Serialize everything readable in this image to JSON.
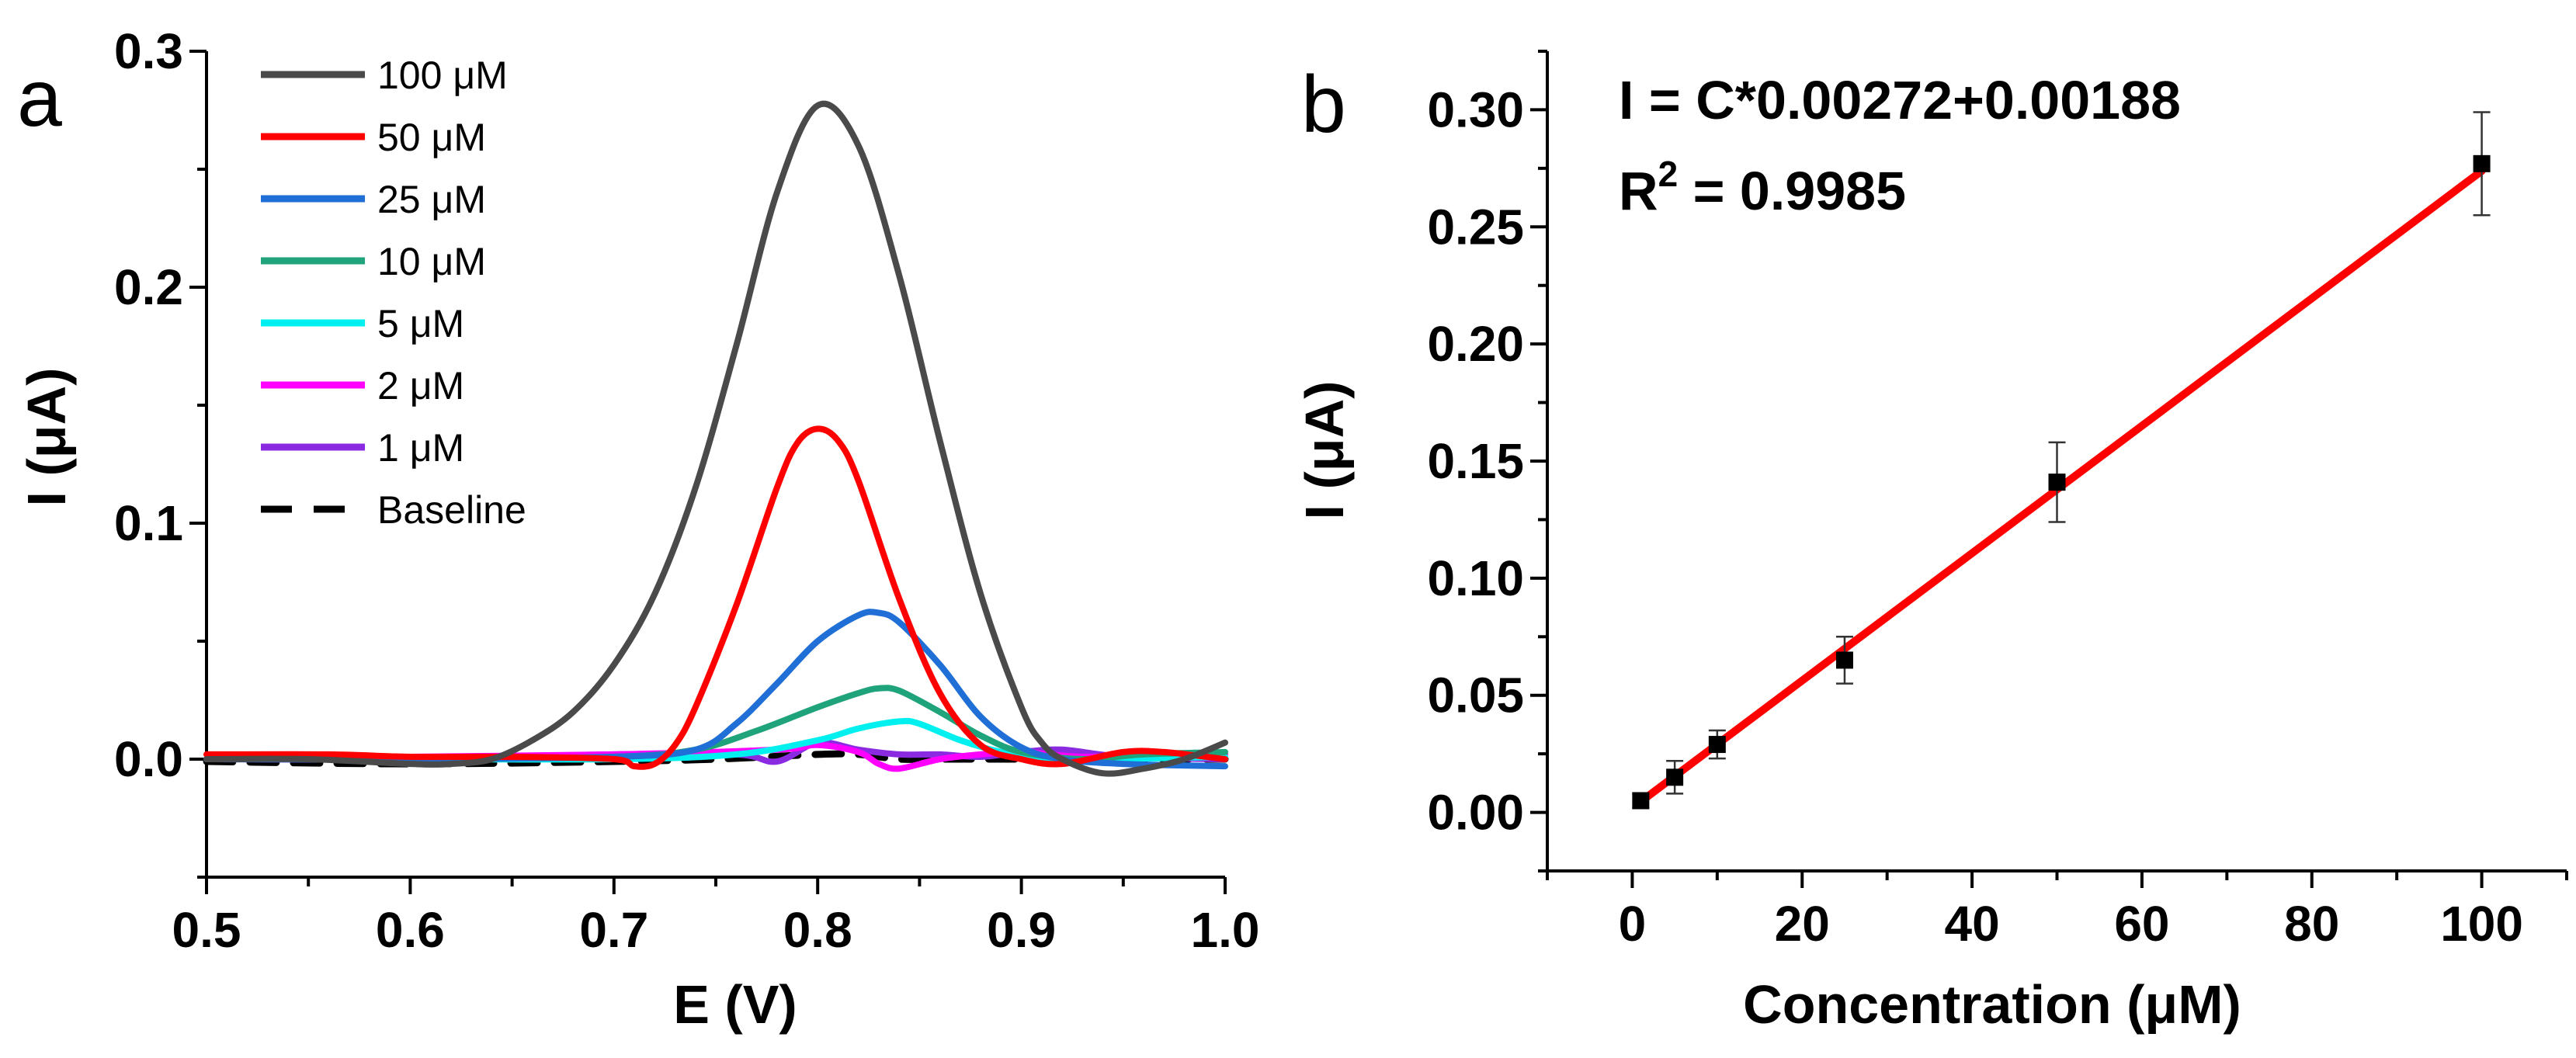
{
  "chart_data": [
    {
      "type": "line",
      "panel_label": "a",
      "xlabel": "E (V)",
      "ylabel": "I (μA)",
      "xlim": [
        0.5,
        1.0
      ],
      "ylim": [
        -0.05,
        0.3
      ],
      "x_ticks": [
        0.5,
        0.6,
        0.7,
        0.8,
        0.9,
        1.0
      ],
      "x_tick_labels": [
        "0.5",
        "0.6",
        "0.7",
        "0.8",
        "0.9",
        "1.0"
      ],
      "y_ticks": [
        0.0,
        0.1,
        0.2,
        0.3
      ],
      "y_tick_labels": [
        "0.0",
        "0.1",
        "0.2",
        "0.3"
      ],
      "legend_position": "top-left",
      "series": [
        {
          "name": "100 μM",
          "color": "#4a4a4a",
          "dash": "solid",
          "x": [
            0.5,
            0.55,
            0.6,
            0.62,
            0.64,
            0.66,
            0.68,
            0.7,
            0.72,
            0.74,
            0.76,
            0.78,
            0.8,
            0.82,
            0.84,
            0.86,
            0.88,
            0.9,
            0.91,
            0.92,
            0.94,
            0.96,
            0.98,
            1.0
          ],
          "y": [
            0.0,
            0.0,
            -0.002,
            -0.002,
            0.0,
            0.008,
            0.02,
            0.04,
            0.07,
            0.115,
            0.175,
            0.24,
            0.277,
            0.26,
            0.205,
            0.135,
            0.07,
            0.022,
            0.007,
            0.0,
            -0.006,
            -0.004,
            0.0,
            0.007
          ]
        },
        {
          "name": "50 μM",
          "color": "#ff0000",
          "dash": "solid",
          "x": [
            0.5,
            0.56,
            0.6,
            0.65,
            0.7,
            0.71,
            0.72,
            0.73,
            0.74,
            0.76,
            0.78,
            0.79,
            0.8,
            0.81,
            0.82,
            0.84,
            0.86,
            0.88,
            0.9,
            0.92,
            0.95,
            0.97,
            1.0
          ],
          "y": [
            0.002,
            0.002,
            0.001,
            0.001,
            0.0,
            -0.003,
            -0.002,
            0.006,
            0.022,
            0.065,
            0.115,
            0.134,
            0.14,
            0.135,
            0.118,
            0.068,
            0.028,
            0.006,
            0.0,
            -0.002,
            0.003,
            0.003,
            0.0
          ]
        },
        {
          "name": "25 μM",
          "color": "#1f6fd6",
          "dash": "solid",
          "x": [
            0.5,
            0.6,
            0.7,
            0.74,
            0.76,
            0.78,
            0.8,
            0.82,
            0.83,
            0.84,
            0.86,
            0.88,
            0.9,
            0.92,
            0.95,
            1.0
          ],
          "y": [
            0.0,
            0.0,
            0.001,
            0.004,
            0.015,
            0.032,
            0.05,
            0.061,
            0.062,
            0.058,
            0.04,
            0.018,
            0.005,
            0.0,
            -0.002,
            -0.003
          ]
        },
        {
          "name": "10 μM",
          "color": "#1fa37a",
          "dash": "solid",
          "x": [
            0.5,
            0.6,
            0.7,
            0.74,
            0.77,
            0.8,
            0.82,
            0.83,
            0.84,
            0.86,
            0.88,
            0.9,
            0.93,
            0.96,
            1.0
          ],
          "y": [
            0.0,
            0.0,
            0.001,
            0.004,
            0.012,
            0.022,
            0.028,
            0.03,
            0.029,
            0.02,
            0.01,
            0.003,
            0.0,
            0.002,
            0.003
          ]
        },
        {
          "name": "5 μM",
          "color": "#00f0f0",
          "dash": "solid",
          "x": [
            0.5,
            0.6,
            0.7,
            0.76,
            0.8,
            0.82,
            0.84,
            0.85,
            0.87,
            0.89,
            0.91,
            0.94,
            1.0
          ],
          "y": [
            0.0,
            0.0,
            0.0,
            0.002,
            0.008,
            0.013,
            0.016,
            0.015,
            0.008,
            0.003,
            0.0,
            0.0,
            0.001
          ]
        },
        {
          "name": "2 μM",
          "color": "#ff00ff",
          "dash": "solid",
          "x": [
            0.5,
            0.6,
            0.7,
            0.78,
            0.8,
            0.82,
            0.83,
            0.84,
            0.86,
            0.88,
            0.9,
            0.93,
            0.96,
            1.0
          ],
          "y": [
            0.0,
            0.001,
            0.002,
            0.004,
            0.006,
            0.003,
            -0.002,
            -0.004,
            0.0,
            0.002,
            0.003,
            0.001,
            0.002,
            0.002
          ]
        },
        {
          "name": "1 μM",
          "color": "#8a2be2",
          "dash": "solid",
          "x": [
            0.5,
            0.6,
            0.7,
            0.76,
            0.78,
            0.8,
            0.82,
            0.84,
            0.86,
            0.88,
            0.9,
            0.92,
            0.95,
            1.0
          ],
          "y": [
            0.0,
            0.0,
            0.002,
            0.002,
            -0.001,
            0.007,
            0.004,
            0.002,
            0.002,
            0.001,
            0.003,
            0.004,
            0.001,
            0.0
          ]
        },
        {
          "name": "Baseline",
          "color": "#000000",
          "dash": "dashed",
          "x": [
            0.5,
            0.6,
            0.7,
            0.75,
            0.8,
            0.82,
            0.84,
            0.86,
            0.9,
            0.95,
            1.0
          ],
          "y": [
            -0.001,
            -0.002,
            -0.001,
            0.0,
            0.002,
            0.002,
            0.0,
            0.0,
            0.0,
            0.0,
            0.0
          ]
        }
      ]
    },
    {
      "type": "scatter",
      "panel_label": "b",
      "xlabel": "Concentration (μM)",
      "ylabel": "I (μA)",
      "xlim": [
        -10,
        110
      ],
      "ylim": [
        -0.025,
        0.325
      ],
      "x_ticks": [
        0,
        20,
        40,
        60,
        80,
        100
      ],
      "x_tick_labels": [
        "0",
        "20",
        "40",
        "60",
        "80",
        "100"
      ],
      "y_ticks": [
        0.0,
        0.05,
        0.1,
        0.15,
        0.2,
        0.25,
        0.3
      ],
      "y_tick_labels": [
        "0.00",
        "0.05",
        "0.10",
        "0.15",
        "0.20",
        "0.25",
        "0.30"
      ],
      "equation": "I = C*0.00272+0.00188",
      "r2_label_prefix": "R",
      "r2_label_sup": "2",
      "r2_label_suffix": " = 0.9985",
      "fit": {
        "slope": 0.00272,
        "intercept": 0.00188,
        "x_range": [
          1,
          100
        ],
        "color": "#ff0000"
      },
      "points": {
        "x": [
          1,
          5,
          10,
          25,
          50,
          100
        ],
        "y": [
          0.005,
          0.015,
          0.029,
          0.065,
          0.141,
          0.277
        ],
        "error": [
          0.003,
          0.007,
          0.006,
          0.01,
          0.017,
          0.022
        ],
        "color": "#000000"
      }
    }
  ]
}
